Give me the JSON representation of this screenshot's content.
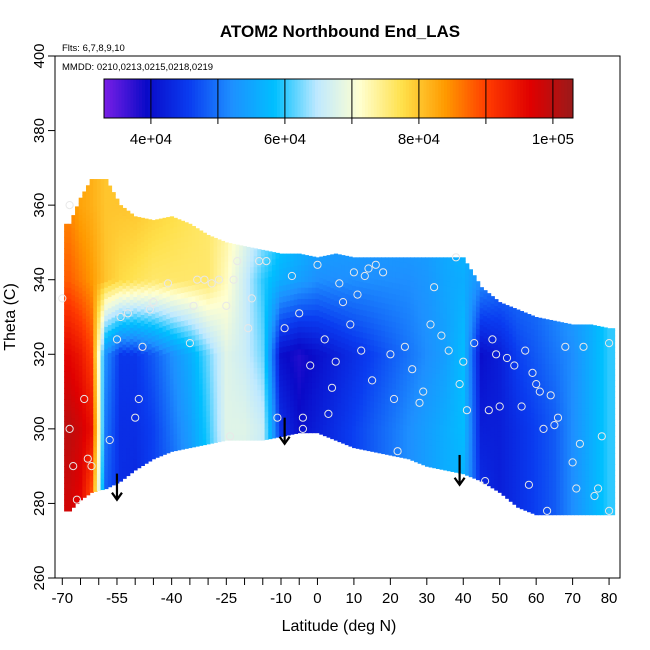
{
  "chart_data": {
    "type": "heatmap",
    "title": "ATOM2 Northbound End_LAS",
    "annotations": [
      "Flts: 6,7,8,9,10",
      "MMDD: 0210,0213,0215,0218,0219"
    ],
    "xlabel": "Latitude (deg N)",
    "ylabel": "Theta (C)",
    "xlim": [
      -72,
      83
    ],
    "ylim": [
      260,
      400
    ],
    "x_ticks": [
      -70,
      -55,
      -40,
      -25,
      -10,
      0,
      10,
      20,
      30,
      40,
      50,
      60,
      70,
      80
    ],
    "x_tick_labels": [
      "-70",
      "-55",
      "-40",
      "-25",
      "-10",
      "0",
      "10",
      "20",
      "30",
      "40",
      "50",
      "60",
      "70",
      "80"
    ],
    "x_minor_ticks": [
      -65,
      -60,
      -50,
      -45,
      -35,
      -30,
      -20,
      -15,
      -5
    ],
    "y_ticks": [
      260,
      280,
      300,
      320,
      340,
      360,
      380,
      400
    ],
    "y_tick_labels": [
      "260",
      "280",
      "300",
      "320",
      "340",
      "360",
      "380",
      "400"
    ],
    "colorbar": {
      "range": [
        33000,
        103000
      ],
      "tick_values": [
        40000,
        60000,
        80000,
        100000
      ],
      "tick_labels": [
        "4e+04",
        "6e+04",
        "8e+04",
        "1e+05"
      ],
      "divisions": [
        50000,
        70000,
        90000
      ],
      "colors": [
        "#7a1fe6",
        "#0a0ac8",
        "#0a3cf0",
        "#1e90ff",
        "#00bfff",
        "#bfe9ff",
        "#ffffd0",
        "#ffe04a",
        "#ff9a00",
        "#ff3a00",
        "#e00000",
        "#9a1a1a"
      ]
    },
    "field": {
      "x_columns": [
        -68,
        -65,
        -62,
        -58,
        -54,
        -50,
        -45,
        -40,
        -35,
        -30,
        -25,
        -20,
        -15,
        -10,
        -5,
        0,
        5,
        10,
        15,
        20,
        25,
        30,
        35,
        40,
        45,
        50,
        55,
        60,
        65,
        70,
        75,
        80
      ],
      "top_theta": [
        355,
        362,
        367,
        367,
        360,
        357,
        356,
        357,
        355,
        352,
        350,
        349,
        348,
        347,
        347,
        346,
        347,
        346,
        346,
        346,
        346,
        346,
        346,
        346,
        338,
        334,
        332,
        330,
        329,
        328,
        328,
        327
      ],
      "bottom_theta": [
        278,
        281,
        283,
        284,
        286,
        289,
        292,
        294,
        295,
        296,
        297,
        297,
        297,
        298,
        299,
        299,
        297,
        295,
        294,
        293,
        292,
        290,
        289,
        288,
        286,
        283,
        279,
        277,
        277,
        277,
        277,
        277
      ],
      "theta_levels": [
        280,
        300,
        320,
        340,
        360
      ],
      "values": [
        [
          98000,
          100000,
          96000,
          88000,
          85000
        ],
        [
          96000,
          98000,
          94000,
          86000,
          83000
        ],
        [
          88000,
          95000,
          90000,
          84000,
          82000
        ],
        [
          48000,
          50000,
          52000,
          80000,
          80000
        ],
        [
          44000,
          44000,
          45000,
          78000,
          80000
        ],
        [
          43000,
          44000,
          45000,
          77000,
          80000
        ],
        [
          46000,
          46000,
          48000,
          76000,
          79000
        ],
        [
          48000,
          50000,
          52000,
          76000,
          78000
        ],
        [
          52000,
          54000,
          56000,
          76000,
          77000
        ],
        [
          58000,
          60000,
          62000,
          76000,
          76000
        ],
        [
          66000,
          68000,
          68000,
          72000,
          74000
        ],
        [
          66000,
          68000,
          66000,
          66000,
          70000
        ],
        [
          64000,
          66000,
          62000,
          60000,
          66000
        ],
        [
          48000,
          44000,
          40000,
          56000,
          62000
        ],
        [
          42000,
          40000,
          38000,
          54000,
          60000
        ],
        [
          42000,
          42000,
          40000,
          52000,
          58000
        ],
        [
          44000,
          44000,
          42000,
          52000,
          56000
        ],
        [
          46000,
          46000,
          44000,
          52000,
          56000
        ],
        [
          48000,
          48000,
          46000,
          52000,
          55000
        ],
        [
          50000,
          50000,
          48000,
          52000,
          55000
        ],
        [
          52000,
          52000,
          50000,
          52000,
          55000
        ],
        [
          54000,
          54000,
          52000,
          53000,
          55000
        ],
        [
          56000,
          56000,
          54000,
          55000,
          56000
        ],
        [
          56000,
          58000,
          58000,
          56000,
          58000
        ],
        [
          44000,
          42000,
          40000,
          52000,
          56000
        ],
        [
          42000,
          42000,
          42000,
          50000,
          54000
        ],
        [
          44000,
          44000,
          46000,
          50000,
          52000
        ],
        [
          46000,
          46000,
          48000,
          50000,
          52000
        ],
        [
          48000,
          48000,
          50000,
          52000,
          54000
        ],
        [
          52000,
          52000,
          52000,
          54000,
          56000
        ],
        [
          56000,
          56000,
          56000,
          56000,
          58000
        ],
        [
          60000,
          60000,
          60000,
          60000,
          60000
        ]
      ]
    },
    "sample_points": [
      [
        -70,
        335
      ],
      [
        -68,
        360
      ],
      [
        -68,
        300
      ],
      [
        -67,
        290
      ],
      [
        -66,
        281
      ],
      [
        -64,
        308
      ],
      [
        -63,
        292
      ],
      [
        -62,
        290
      ],
      [
        -57,
        297
      ],
      [
        -55,
        324
      ],
      [
        -54,
        330
      ],
      [
        -52,
        331
      ],
      [
        -50,
        303
      ],
      [
        -49,
        308
      ],
      [
        -48,
        322
      ],
      [
        -46,
        332
      ],
      [
        -45,
        334
      ],
      [
        -41,
        339
      ],
      [
        -35,
        323
      ],
      [
        -34,
        333
      ],
      [
        -33,
        340
      ],
      [
        -31,
        340
      ],
      [
        -29,
        339
      ],
      [
        -27,
        340
      ],
      [
        -25,
        333
      ],
      [
        -23,
        340
      ],
      [
        -22,
        345
      ],
      [
        -24,
        298
      ],
      [
        -19,
        327
      ],
      [
        -18,
        335
      ],
      [
        -16,
        345
      ],
      [
        -14,
        345
      ],
      [
        -11,
        303
      ],
      [
        -9,
        327
      ],
      [
        -7,
        341
      ],
      [
        -5,
        331
      ],
      [
        -4,
        300
      ],
      [
        -4,
        303
      ],
      [
        -2,
        317
      ],
      [
        0,
        344
      ],
      [
        2,
        324
      ],
      [
        3,
        304
      ],
      [
        4,
        311
      ],
      [
        5,
        318
      ],
      [
        6,
        339
      ],
      [
        7,
        334
      ],
      [
        9,
        328
      ],
      [
        10,
        342
      ],
      [
        11,
        336
      ],
      [
        12,
        321
      ],
      [
        13,
        341
      ],
      [
        14,
        343
      ],
      [
        15,
        313
      ],
      [
        16,
        344
      ],
      [
        18,
        342
      ],
      [
        20,
        320
      ],
      [
        21,
        308
      ],
      [
        22,
        294
      ],
      [
        24,
        322
      ],
      [
        26,
        316
      ],
      [
        28,
        307
      ],
      [
        29,
        310
      ],
      [
        31,
        328
      ],
      [
        32,
        338
      ],
      [
        34,
        325
      ],
      [
        36,
        321
      ],
      [
        38,
        346
      ],
      [
        39,
        312
      ],
      [
        40,
        318
      ],
      [
        41,
        305
      ],
      [
        43,
        323
      ],
      [
        46,
        286
      ],
      [
        47,
        305
      ],
      [
        48,
        324
      ],
      [
        49,
        320
      ],
      [
        50,
        306
      ],
      [
        52,
        319
      ],
      [
        54,
        317
      ],
      [
        56,
        306
      ],
      [
        57,
        321
      ],
      [
        58,
        285
      ],
      [
        59,
        315
      ],
      [
        60,
        312
      ],
      [
        61,
        310
      ],
      [
        62,
        300
      ],
      [
        63,
        278
      ],
      [
        64,
        309
      ],
      [
        65,
        301
      ],
      [
        66,
        303
      ],
      [
        68,
        322
      ],
      [
        70,
        291
      ],
      [
        71,
        284
      ],
      [
        72,
        296
      ],
      [
        73,
        322
      ],
      [
        76,
        282
      ],
      [
        77,
        284
      ],
      [
        78,
        298
      ],
      [
        80,
        323
      ],
      [
        80,
        278
      ]
    ],
    "arrows": [
      {
        "x": -55,
        "y_from": 288,
        "y_to": 281
      },
      {
        "x": -9,
        "y_from": 303,
        "y_to": 296
      },
      {
        "x": 39,
        "y_from": 293,
        "y_to": 285
      }
    ]
  }
}
